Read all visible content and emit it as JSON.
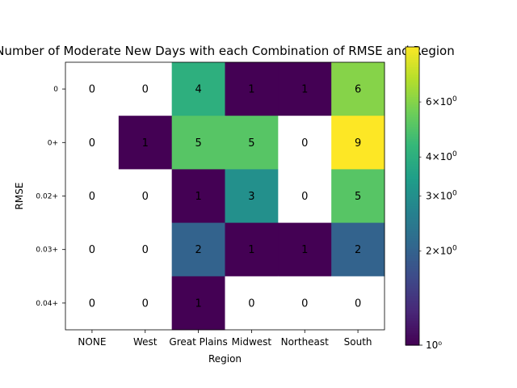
{
  "chart_data": {
    "type": "heatmap",
    "title": "Number of Moderate New Days with each Combination of RMSE and Region",
    "xlabel": "Region",
    "ylabel": "RMSE",
    "x_categories": [
      "NONE",
      "West",
      "Great Plains",
      "Midwest",
      "Northeast",
      "South"
    ],
    "y_categories": [
      "0",
      "0+",
      "0.02+",
      "0.03+",
      "0.04+"
    ],
    "values": [
      [
        0,
        0,
        4,
        1,
        1,
        6
      ],
      [
        0,
        1,
        5,
        5,
        0,
        9
      ],
      [
        0,
        0,
        1,
        3,
        0,
        5
      ],
      [
        0,
        0,
        2,
        1,
        1,
        2
      ],
      [
        0,
        0,
        1,
        0,
        0,
        0
      ]
    ],
    "colorscale": "viridis",
    "color_scale_type": "log",
    "color_range": [
      1,
      9
    ],
    "zero_cells": "white",
    "colorbar": {
      "major_ticks": [
        {
          "value": 1,
          "label": "10⁰"
        }
      ],
      "minor_ticks": [
        {
          "value": 2,
          "base": "2",
          "exp": "0"
        },
        {
          "value": 3,
          "base": "3",
          "exp": "0"
        },
        {
          "value": 4,
          "base": "4",
          "exp": "0"
        },
        {
          "value": 6,
          "base": "6",
          "exp": "0"
        }
      ]
    }
  }
}
